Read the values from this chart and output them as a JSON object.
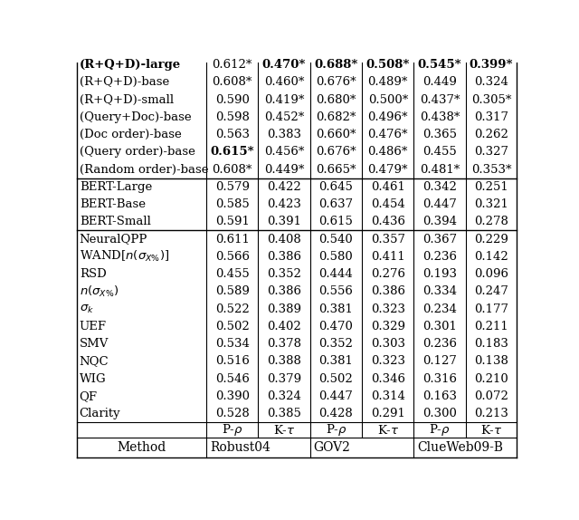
{
  "col_groups": [
    "Robust04",
    "GOV2",
    "ClueWeb09-B"
  ],
  "rows": [
    {
      "method": "Clarity",
      "bold_method": false,
      "vals": [
        "0.528",
        "0.385",
        "0.428",
        "0.291",
        "0.300",
        "0.213"
      ],
      "bold": [
        false,
        false,
        false,
        false,
        false,
        false
      ],
      "star": [
        false,
        false,
        false,
        false,
        false,
        false
      ]
    },
    {
      "method": "QF",
      "bold_method": false,
      "vals": [
        "0.390",
        "0.324",
        "0.447",
        "0.314",
        "0.163",
        "0.072"
      ],
      "bold": [
        false,
        false,
        false,
        false,
        false,
        false
      ],
      "star": [
        false,
        false,
        false,
        false,
        false,
        false
      ]
    },
    {
      "method": "WIG",
      "bold_method": false,
      "vals": [
        "0.546",
        "0.379",
        "0.502",
        "0.346",
        "0.316",
        "0.210"
      ],
      "bold": [
        false,
        false,
        false,
        false,
        false,
        false
      ],
      "star": [
        false,
        false,
        false,
        false,
        false,
        false
      ]
    },
    {
      "method": "NQC",
      "bold_method": false,
      "vals": [
        "0.516",
        "0.388",
        "0.381",
        "0.323",
        "0.127",
        "0.138"
      ],
      "bold": [
        false,
        false,
        false,
        false,
        false,
        false
      ],
      "star": [
        false,
        false,
        false,
        false,
        false,
        false
      ]
    },
    {
      "method": "SMV",
      "bold_method": false,
      "vals": [
        "0.534",
        "0.378",
        "0.352",
        "0.303",
        "0.236",
        "0.183"
      ],
      "bold": [
        false,
        false,
        false,
        false,
        false,
        false
      ],
      "star": [
        false,
        false,
        false,
        false,
        false,
        false
      ]
    },
    {
      "method": "UEF",
      "bold_method": false,
      "vals": [
        "0.502",
        "0.402",
        "0.470",
        "0.329",
        "0.301",
        "0.211"
      ],
      "bold": [
        false,
        false,
        false,
        false,
        false,
        false
      ],
      "star": [
        false,
        false,
        false,
        false,
        false,
        false
      ]
    },
    {
      "method": "sigma_k",
      "bold_method": false,
      "vals": [
        "0.522",
        "0.389",
        "0.381",
        "0.323",
        "0.234",
        "0.177"
      ],
      "bold": [
        false,
        false,
        false,
        false,
        false,
        false
      ],
      "star": [
        false,
        false,
        false,
        false,
        false,
        false
      ]
    },
    {
      "method": "n_sigma",
      "bold_method": false,
      "vals": [
        "0.589",
        "0.386",
        "0.556",
        "0.386",
        "0.334",
        "0.247"
      ],
      "bold": [
        false,
        false,
        false,
        false,
        false,
        false
      ],
      "star": [
        false,
        false,
        false,
        false,
        false,
        false
      ]
    },
    {
      "method": "RSD",
      "bold_method": false,
      "vals": [
        "0.455",
        "0.352",
        "0.444",
        "0.276",
        "0.193",
        "0.096"
      ],
      "bold": [
        false,
        false,
        false,
        false,
        false,
        false
      ],
      "star": [
        false,
        false,
        false,
        false,
        false,
        false
      ]
    },
    {
      "method": "wand_sigma",
      "bold_method": false,
      "vals": [
        "0.566",
        "0.386",
        "0.580",
        "0.411",
        "0.236",
        "0.142"
      ],
      "bold": [
        false,
        false,
        false,
        false,
        false,
        false
      ],
      "star": [
        false,
        false,
        false,
        false,
        false,
        false
      ]
    },
    {
      "method": "NeuralQPP",
      "bold_method": false,
      "vals": [
        "0.611",
        "0.408",
        "0.540",
        "0.357",
        "0.367",
        "0.229"
      ],
      "bold": [
        false,
        false,
        false,
        false,
        false,
        false
      ],
      "star": [
        false,
        false,
        false,
        false,
        false,
        false
      ]
    },
    {
      "method": "BERT-Small",
      "bold_method": false,
      "vals": [
        "0.591",
        "0.391",
        "0.615",
        "0.436",
        "0.394",
        "0.278"
      ],
      "bold": [
        false,
        false,
        false,
        false,
        false,
        false
      ],
      "star": [
        false,
        false,
        false,
        false,
        false,
        false
      ]
    },
    {
      "method": "BERT-Base",
      "bold_method": false,
      "vals": [
        "0.585",
        "0.423",
        "0.637",
        "0.454",
        "0.447",
        "0.321"
      ],
      "bold": [
        false,
        false,
        false,
        false,
        false,
        false
      ],
      "star": [
        false,
        false,
        false,
        false,
        false,
        false
      ]
    },
    {
      "method": "BERT-Large",
      "bold_method": false,
      "vals": [
        "0.579",
        "0.422",
        "0.645",
        "0.461",
        "0.342",
        "0.251"
      ],
      "bold": [
        false,
        false,
        false,
        false,
        false,
        false
      ],
      "star": [
        false,
        false,
        false,
        false,
        false,
        false
      ]
    },
    {
      "method": "(Random order)-base",
      "bold_method": false,
      "vals": [
        "0.608",
        "0.449",
        "0.665",
        "0.479",
        "0.481",
        "0.353"
      ],
      "bold": [
        false,
        false,
        false,
        false,
        false,
        false
      ],
      "star": [
        true,
        true,
        true,
        true,
        true,
        true
      ]
    },
    {
      "method": "(Query order)-base",
      "bold_method": false,
      "vals": [
        "0.615",
        "0.456",
        "0.676",
        "0.486",
        "0.455",
        "0.327"
      ],
      "bold": [
        true,
        false,
        false,
        false,
        false,
        false
      ],
      "star": [
        true,
        true,
        true,
        true,
        false,
        false
      ]
    },
    {
      "method": "(Doc order)-base",
      "bold_method": false,
      "vals": [
        "0.563",
        "0.383",
        "0.660",
        "0.476",
        "0.365",
        "0.262"
      ],
      "bold": [
        false,
        false,
        false,
        false,
        false,
        false
      ],
      "star": [
        false,
        false,
        true,
        true,
        false,
        false
      ]
    },
    {
      "method": "(Query+Doc)-base",
      "bold_method": false,
      "vals": [
        "0.598",
        "0.452",
        "0.682",
        "0.496",
        "0.438",
        "0.317"
      ],
      "bold": [
        false,
        false,
        false,
        false,
        false,
        false
      ],
      "star": [
        false,
        true,
        true,
        true,
        true,
        false
      ]
    },
    {
      "method": "(R+Q+D)-small",
      "bold_method": false,
      "vals": [
        "0.590",
        "0.419",
        "0.680",
        "0.500",
        "0.437",
        "0.305"
      ],
      "bold": [
        false,
        false,
        false,
        false,
        false,
        false
      ],
      "star": [
        false,
        true,
        true,
        true,
        true,
        true
      ]
    },
    {
      "method": "(R+Q+D)-base",
      "bold_method": false,
      "vals": [
        "0.608",
        "0.460",
        "0.676",
        "0.489",
        "0.449",
        "0.324"
      ],
      "bold": [
        false,
        false,
        false,
        false,
        false,
        false
      ],
      "star": [
        true,
        true,
        true,
        true,
        false,
        false
      ]
    },
    {
      "method": "(R+Q+D)-large",
      "bold_method": true,
      "vals": [
        "0.612",
        "0.470",
        "0.688",
        "0.508",
        "0.545",
        "0.399"
      ],
      "bold": [
        false,
        true,
        true,
        true,
        true,
        true
      ],
      "star": [
        true,
        true,
        true,
        true,
        true,
        true
      ]
    }
  ],
  "section_breaks_after": [
    10,
    13
  ],
  "font_size_data": 9.5,
  "font_size_header": 10.0,
  "font_size_subheader": 9.5
}
